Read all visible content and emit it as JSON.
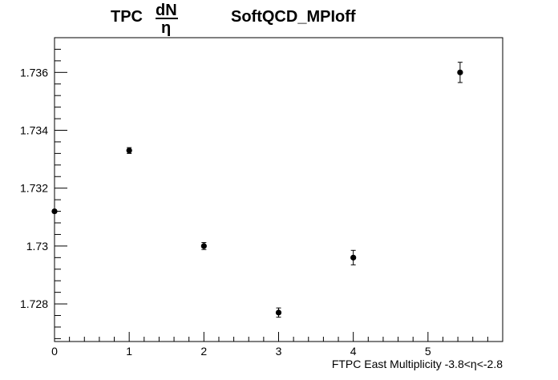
{
  "chart_data": {
    "type": "scatter",
    "title": {
      "prefix": "TPC",
      "frac_num": "dN",
      "frac_den": "η",
      "suffix": "SoftQCD_MPIoff"
    },
    "xlabel": "FTPC East Multiplicity -3.8<η<-2.8",
    "ylabel": "",
    "xlim": [
      0,
      6
    ],
    "ylim": [
      1.7267,
      1.7372
    ],
    "x_ticks": [
      0,
      1,
      2,
      3,
      4,
      5
    ],
    "x_tick_labels": [
      "0",
      "1",
      "2",
      "3",
      "4",
      "5"
    ],
    "y_ticks": [
      1.728,
      1.73,
      1.732,
      1.734,
      1.736
    ],
    "y_tick_labels": [
      "1.728",
      "1.73",
      "1.732",
      "1.734",
      "1.736"
    ],
    "grid": false,
    "points": [
      {
        "x": 0.0,
        "y": 1.7312,
        "err": 5e-05
      },
      {
        "x": 1.0,
        "y": 1.7333,
        "err": 0.0001
      },
      {
        "x": 2.0,
        "y": 1.73,
        "err": 0.00012
      },
      {
        "x": 3.0,
        "y": 1.7277,
        "err": 0.00016
      },
      {
        "x": 4.0,
        "y": 1.7296,
        "err": 0.00025
      },
      {
        "x": 5.43,
        "y": 1.736,
        "err": 0.00035
      }
    ]
  }
}
